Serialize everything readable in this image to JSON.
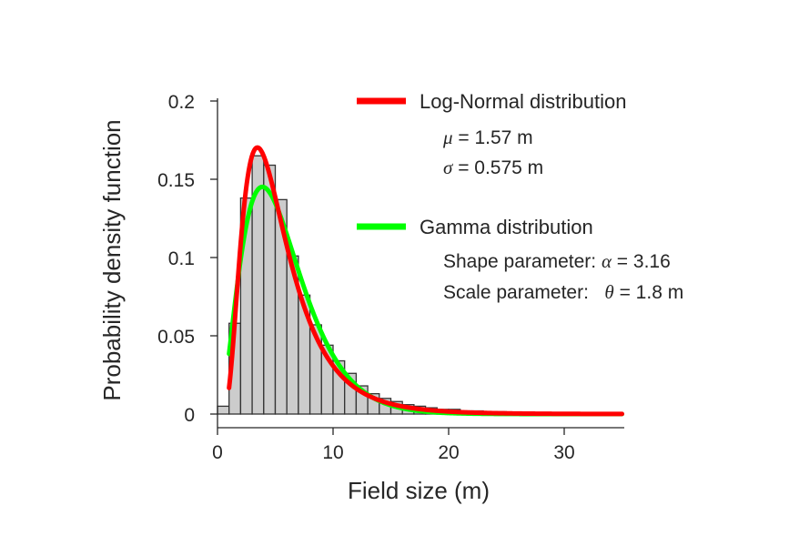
{
  "chart_data": {
    "type": "histogram",
    "xlabel": "Field size (m)",
    "ylabel": "Probability density function",
    "xlim": [
      0,
      35
    ],
    "ylim": [
      0,
      0.2
    ],
    "x_ticks": [
      0,
      10,
      20,
      30
    ],
    "x_tick_labels": [
      "0",
      "10",
      "20",
      "30"
    ],
    "y_ticks": [
      0,
      0.05,
      0.1,
      0.15,
      0.2
    ],
    "y_tick_labels": [
      "0",
      "0.05",
      "0.1",
      "0.15",
      "0.2"
    ],
    "grid": false,
    "legend_position": "top-right",
    "histogram": {
      "bin_width": 1,
      "bin_starts": [
        0,
        1,
        2,
        3,
        4,
        5,
        6,
        7,
        8,
        9,
        10,
        11,
        12,
        13,
        14,
        15,
        16,
        17,
        18,
        19,
        20,
        21,
        22,
        23,
        24,
        25,
        26,
        27,
        28,
        29,
        30,
        31,
        32,
        33,
        34
      ],
      "values": [
        0.005,
        0.058,
        0.138,
        0.165,
        0.159,
        0.137,
        0.101,
        0.076,
        0.057,
        0.044,
        0.034,
        0.026,
        0.018,
        0.013,
        0.01,
        0.008,
        0.006,
        0.005,
        0.004,
        0.003,
        0.003,
        0.002,
        0.002,
        0.0015,
        0.0015,
        0.001,
        0.001,
        0.001,
        0.0008,
        0.001,
        0.0008,
        0.0005,
        0.0005,
        0.0004,
        0.0003
      ],
      "fill_color": "#cccccc",
      "edge_color": "#333333"
    },
    "series": [
      {
        "name": "Log-Normal distribution",
        "kind": "lognormal",
        "color": "#ff0000",
        "params": {
          "mu": 1.57,
          "sigma": 0.575
        },
        "x_range": [
          1,
          35
        ]
      },
      {
        "name": "Gamma distribution",
        "kind": "gamma",
        "color": "#00ff00",
        "params": {
          "alpha": 3.16,
          "theta": 1.8
        },
        "x_range": [
          1,
          35
        ]
      }
    ],
    "legend": {
      "lognormal": {
        "title": "Log-Normal distribution",
        "mu_symbol": "μ",
        "mu_text": " = 1.57 m",
        "sigma_symbol": "σ",
        "sigma_text": " = 0.575 m"
      },
      "gamma": {
        "title": "Gamma distribution",
        "shape_label": "Shape parameter: ",
        "shape_symbol": "α",
        "shape_text": " = 3.16",
        "scale_label": "Scale parameter:   ",
        "scale_symbol": "θ",
        "scale_text": " = 1.8 m"
      }
    }
  }
}
